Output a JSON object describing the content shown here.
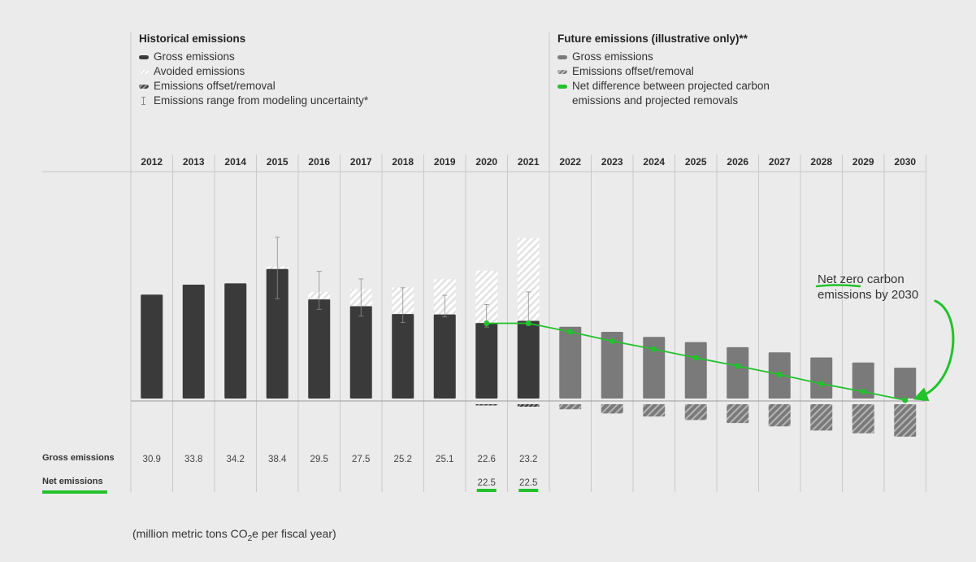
{
  "legend_historical": {
    "title": "Historical emissions",
    "items": [
      {
        "label": "Gross emissions",
        "icon": "gross-emissions-swatch"
      },
      {
        "label": "Avoided emissions",
        "icon": "avoided-emissions-swatch"
      },
      {
        "label": "Emissions offset/removal",
        "icon": "offset-swatch"
      },
      {
        "label": "Emissions range from modeling uncertainty*",
        "icon": "range-icon"
      }
    ]
  },
  "legend_future": {
    "title": "Future emissions (illustrative only)**",
    "items": [
      {
        "label": "Gross emissions",
        "icon": "gross-emissions-swatch"
      },
      {
        "label": "Emissions offset/removal",
        "icon": "offset-swatch"
      },
      {
        "label": "Net difference between projected carbon emissions and projected removals",
        "icon": "net-line-swatch"
      }
    ]
  },
  "rows": {
    "gross_label": "Gross emissions",
    "net_label": "Net emissions"
  },
  "unit_note": {
    "prefix": "(million metric tons CO",
    "sub": "2",
    "suffix": "e per fiscal year)"
  },
  "annotation": "Net zero carbon emissions by 2030",
  "colors": {
    "historical_gross": "#3a3a3a",
    "future_gross": "#7a7a7a",
    "net_line": "#22c22b",
    "background": "#ebebeb"
  },
  "chart_data": {
    "type": "bar",
    "categories": [
      "2012",
      "2013",
      "2014",
      "2015",
      "2016",
      "2017",
      "2018",
      "2019",
      "2020",
      "2021",
      "2022",
      "2023",
      "2024",
      "2025",
      "2026",
      "2027",
      "2028",
      "2029",
      "2030"
    ],
    "gross_emissions": [
      30.9,
      33.8,
      34.2,
      38.4,
      29.5,
      27.5,
      25.2,
      25.1,
      22.6,
      23.2,
      21.5,
      20.0,
      18.5,
      17.0,
      15.5,
      14.0,
      12.5,
      11.0,
      9.5
    ],
    "gross_labels": [
      "30.9",
      "33.8",
      "34.2",
      "38.4",
      "29.5",
      "27.5",
      "25.2",
      "25.1",
      "22.6",
      "23.2",
      "",
      "",
      "",
      "",
      "",
      "",
      "",
      "",
      ""
    ],
    "avoided_emissions": [
      0,
      0,
      0,
      0.8,
      2.2,
      5.0,
      7.8,
      10.3,
      15.3,
      24.2,
      0,
      0,
      0,
      0,
      0,
      0,
      0,
      0,
      0
    ],
    "offset_removal": [
      0,
      0,
      0,
      0,
      0,
      0,
      0,
      0,
      0.1,
      0.7,
      1.5,
      2.7,
      3.6,
      4.6,
      5.5,
      6.5,
      7.7,
      8.5,
      9.5
    ],
    "uncertainty_range": [
      null,
      null,
      null,
      [
        29.7,
        47.7
      ],
      [
        26.6,
        37.7
      ],
      [
        24.6,
        35.5
      ],
      [
        22.7,
        32.9
      ],
      [
        24.4,
        30.7
      ],
      [
        21.4,
        28.0
      ],
      [
        21.9,
        31.7
      ],
      null,
      null,
      null,
      null,
      null,
      null,
      null,
      null,
      null
    ],
    "net_emissions": [
      null,
      null,
      null,
      null,
      null,
      null,
      null,
      null,
      22.5,
      22.5,
      20.0,
      17.3,
      14.9,
      12.4,
      10.0,
      7.5,
      4.8,
      2.5,
      0
    ],
    "net_labels": [
      "",
      "",
      "",
      "",
      "",
      "",
      "",
      "",
      "22.5",
      "22.5",
      "",
      "",
      "",
      "",
      "",
      "",
      "",
      "",
      ""
    ],
    "historical_years": 10,
    "ylim": [
      -10,
      50
    ]
  }
}
